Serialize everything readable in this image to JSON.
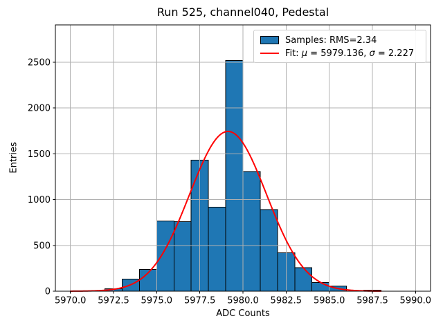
{
  "chart_data": {
    "type": "histogram",
    "title": "Run 525, channel040, Pedestal",
    "xlabel": "ADC Counts",
    "ylabel": "Entries",
    "grid": true,
    "legend_position": "upper right",
    "xlim": [
      5969.13,
      5990.87
    ],
    "ylim": [
      0,
      2908
    ],
    "x_ticks": {
      "values": [
        5970.0,
        5972.5,
        5975.0,
        5977.5,
        5980.0,
        5982.5,
        5985.0,
        5987.5,
        5990.0
      ],
      "labels": [
        "5970.0",
        "5972.5",
        "5975.0",
        "5977.5",
        "5980.0",
        "5982.5",
        "5985.0",
        "5987.5",
        "5990.0"
      ]
    },
    "y_ticks": {
      "values": [
        0,
        500,
        1000,
        1500,
        2000,
        2500
      ],
      "labels": [
        "0",
        "500",
        "1000",
        "1500",
        "2000",
        "2500"
      ]
    },
    "bins": {
      "start": 5972,
      "width": 1,
      "counts": [
        28,
        132,
        238,
        765,
        760,
        1430,
        917,
        2519,
        1305,
        890,
        418,
        255,
        95,
        55,
        0,
        13
      ]
    },
    "fit": {
      "type": "gaussian",
      "mu": 5979.136,
      "sigma": 2.227,
      "amplitude": 1745,
      "x_start": 5970,
      "x_end": 5988
    },
    "legend": {
      "samples_label": "Samples: RMS=2.34",
      "fit_prefix": "Fit: ",
      "mu_symbol": "μ",
      "mu_value": " = 5979.136, ",
      "sigma_symbol": "σ",
      "sigma_value": " = 2.227"
    },
    "colors": {
      "bar_fill": "#1f77b4",
      "bar_edge": "#000000",
      "fit_line": "#ff0000",
      "grid": "#b0b0b0",
      "axis": "#000000"
    }
  }
}
